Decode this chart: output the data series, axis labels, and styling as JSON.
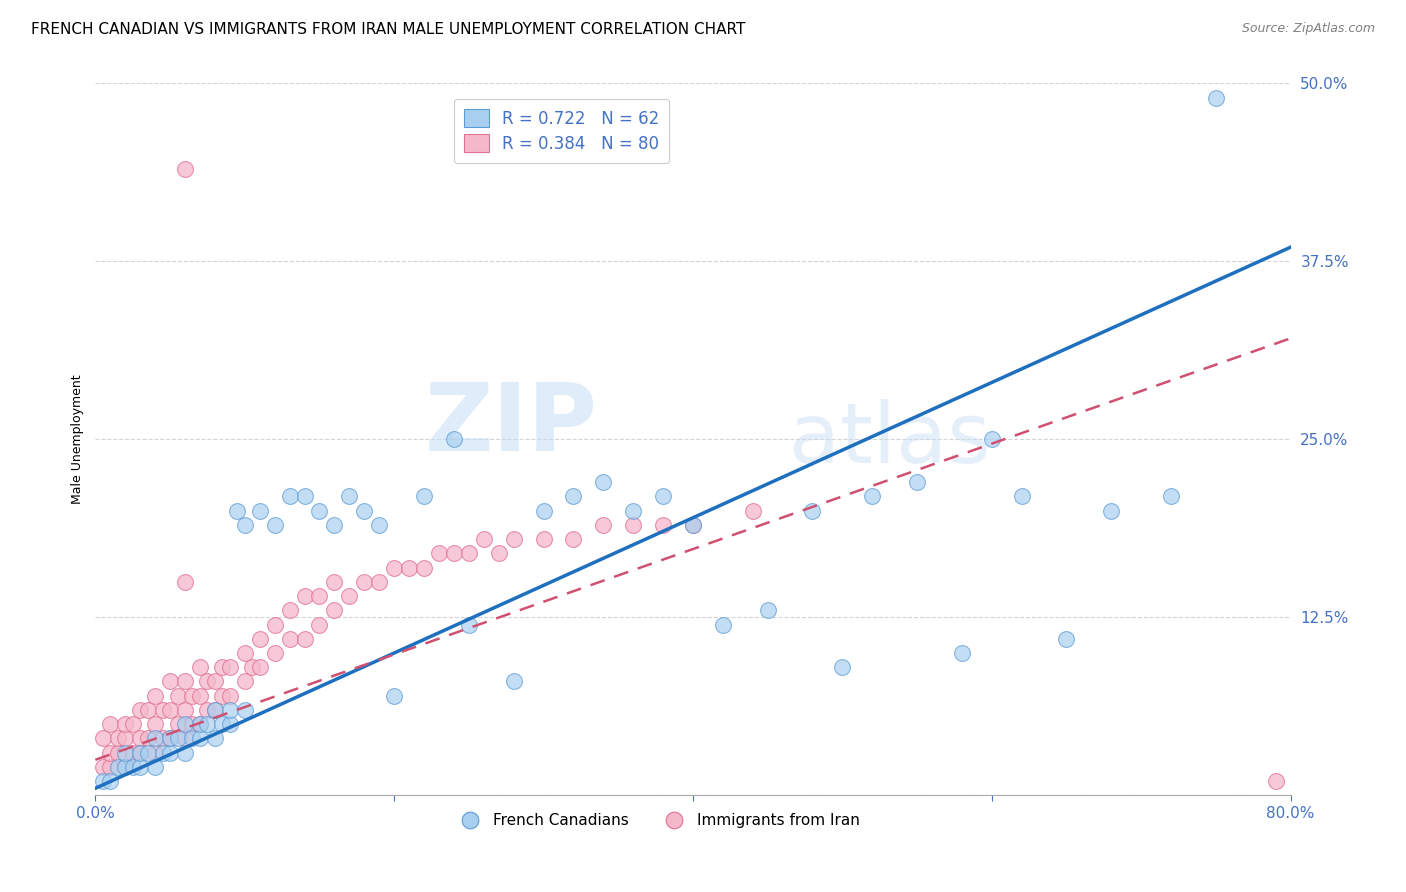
{
  "title": "FRENCH CANADIAN VS IMMIGRANTS FROM IRAN MALE UNEMPLOYMENT CORRELATION CHART",
  "source": "Source: ZipAtlas.com",
  "ylabel": "Male Unemployment",
  "x_min": 0.0,
  "x_max": 0.8,
  "y_min": 0.0,
  "y_max": 0.5,
  "yticks": [
    0.0,
    0.125,
    0.25,
    0.375,
    0.5
  ],
  "ytick_labels": [
    "",
    "12.5%",
    "25.0%",
    "37.5%",
    "50.0%"
  ],
  "xticks": [
    0.0,
    0.2,
    0.4,
    0.6,
    0.8
  ],
  "xtick_labels": [
    "0.0%",
    "",
    "",
    "",
    "80.0%"
  ],
  "blue_color": "#a8cff0",
  "pink_color": "#f5b8cb",
  "blue_edge_color": "#5b9bd5",
  "pink_edge_color": "#e07090",
  "blue_line_color": "#1f6fbf",
  "pink_line_color": "#d05070",
  "legend_blue_r": "R = 0.722",
  "legend_blue_n": "N = 62",
  "legend_pink_r": "R = 0.384",
  "legend_pink_n": "N = 80",
  "watermark_zip": "ZIP",
  "watermark_atlas": "atlas",
  "tick_label_color": "#4472c4",
  "background_color": "#ffffff",
  "grid_color": "#d0d0d0",
  "title_fontsize": 11,
  "axis_label_fontsize": 9,
  "tick_fontsize": 11,
  "blue_line_slope": 0.475,
  "blue_line_intercept": 0.005,
  "pink_line_slope": 0.37,
  "pink_line_intercept": 0.025,
  "blue_scatter_x": [
    0.005,
    0.01,
    0.015,
    0.02,
    0.02,
    0.025,
    0.03,
    0.03,
    0.035,
    0.04,
    0.04,
    0.045,
    0.05,
    0.05,
    0.055,
    0.06,
    0.06,
    0.065,
    0.07,
    0.07,
    0.075,
    0.08,
    0.08,
    0.085,
    0.09,
    0.09,
    0.095,
    0.1,
    0.1,
    0.11,
    0.12,
    0.13,
    0.14,
    0.15,
    0.16,
    0.17,
    0.18,
    0.19,
    0.2,
    0.22,
    0.24,
    0.25,
    0.28,
    0.3,
    0.32,
    0.34,
    0.36,
    0.38,
    0.4,
    0.42,
    0.45,
    0.48,
    0.5,
    0.52,
    0.55,
    0.58,
    0.6,
    0.62,
    0.65,
    0.68,
    0.72,
    0.75
  ],
  "blue_scatter_y": [
    0.01,
    0.01,
    0.02,
    0.02,
    0.03,
    0.02,
    0.02,
    0.03,
    0.03,
    0.02,
    0.04,
    0.03,
    0.03,
    0.04,
    0.04,
    0.03,
    0.05,
    0.04,
    0.04,
    0.05,
    0.05,
    0.04,
    0.06,
    0.05,
    0.05,
    0.06,
    0.2,
    0.06,
    0.19,
    0.2,
    0.19,
    0.21,
    0.21,
    0.2,
    0.19,
    0.21,
    0.2,
    0.19,
    0.07,
    0.21,
    0.25,
    0.12,
    0.08,
    0.2,
    0.21,
    0.22,
    0.2,
    0.21,
    0.19,
    0.12,
    0.13,
    0.2,
    0.09,
    0.21,
    0.22,
    0.1,
    0.25,
    0.21,
    0.11,
    0.2,
    0.21,
    0.49
  ],
  "pink_scatter_x": [
    0.005,
    0.005,
    0.01,
    0.01,
    0.01,
    0.015,
    0.015,
    0.02,
    0.02,
    0.02,
    0.025,
    0.025,
    0.03,
    0.03,
    0.03,
    0.035,
    0.035,
    0.04,
    0.04,
    0.04,
    0.045,
    0.045,
    0.05,
    0.05,
    0.05,
    0.055,
    0.055,
    0.06,
    0.06,
    0.06,
    0.065,
    0.065,
    0.07,
    0.07,
    0.07,
    0.075,
    0.075,
    0.08,
    0.08,
    0.085,
    0.085,
    0.09,
    0.09,
    0.1,
    0.1,
    0.105,
    0.11,
    0.11,
    0.12,
    0.12,
    0.13,
    0.13,
    0.14,
    0.14,
    0.15,
    0.15,
    0.16,
    0.16,
    0.17,
    0.18,
    0.19,
    0.2,
    0.21,
    0.22,
    0.23,
    0.24,
    0.25,
    0.26,
    0.27,
    0.28,
    0.3,
    0.32,
    0.34,
    0.36,
    0.38,
    0.4,
    0.44,
    0.06,
    0.06,
    0.79
  ],
  "pink_scatter_y": [
    0.02,
    0.04,
    0.02,
    0.03,
    0.05,
    0.03,
    0.04,
    0.02,
    0.04,
    0.05,
    0.03,
    0.05,
    0.03,
    0.04,
    0.06,
    0.04,
    0.06,
    0.03,
    0.05,
    0.07,
    0.04,
    0.06,
    0.04,
    0.06,
    0.08,
    0.05,
    0.07,
    0.04,
    0.06,
    0.08,
    0.05,
    0.07,
    0.05,
    0.07,
    0.09,
    0.06,
    0.08,
    0.06,
    0.08,
    0.07,
    0.09,
    0.07,
    0.09,
    0.08,
    0.1,
    0.09,
    0.09,
    0.11,
    0.1,
    0.12,
    0.11,
    0.13,
    0.11,
    0.14,
    0.12,
    0.14,
    0.13,
    0.15,
    0.14,
    0.15,
    0.15,
    0.16,
    0.16,
    0.16,
    0.17,
    0.17,
    0.17,
    0.18,
    0.17,
    0.18,
    0.18,
    0.18,
    0.19,
    0.19,
    0.19,
    0.19,
    0.2,
    0.15,
    0.44,
    0.01
  ]
}
